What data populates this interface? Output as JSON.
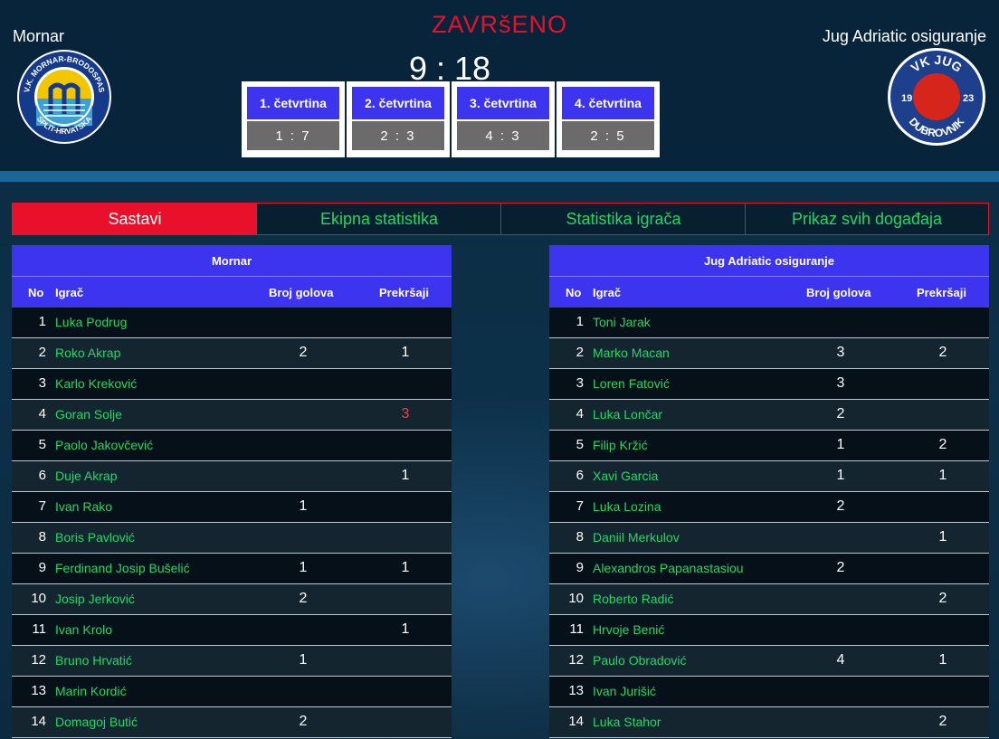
{
  "match": {
    "status": "ZAVRšENO",
    "score": "9 : 18",
    "home_team": "Mornar",
    "away_team": "Jug Adriatic osiguranje"
  },
  "logos": {
    "home": {
      "ring_text_top": "V.K. MORNAR-BRODOSPAS",
      "ring_text_bottom": "SPLIT-HRVATSKA"
    },
    "away": {
      "top": "VK JUG",
      "left": "19",
      "right": "23",
      "bottom": "DUBROVNIK"
    }
  },
  "quarters": [
    {
      "label": "1. četvrtina",
      "score": "1 : 7"
    },
    {
      "label": "2. četvrtina",
      "score": "2 : 3"
    },
    {
      "label": "3. četvrtina",
      "score": "4 : 3"
    },
    {
      "label": "4. četvrtina",
      "score": "2 : 5"
    }
  ],
  "tabs": [
    {
      "label": "Sastavi",
      "active": true
    },
    {
      "label": "Ekipna statistika",
      "active": false
    },
    {
      "label": "Statistika igrača",
      "active": false
    },
    {
      "label": "Prikaz svih događaja",
      "active": false
    }
  ],
  "columns": {
    "no": "No",
    "player": "Igrač",
    "goals": "Broj golova",
    "fouls": "Prekršaji"
  },
  "home_players": [
    {
      "no": "1",
      "name": "Luka Podrug",
      "goals": "",
      "fouls": ""
    },
    {
      "no": "2",
      "name": "Roko Akrap",
      "goals": "2",
      "fouls": "1"
    },
    {
      "no": "3",
      "name": "Karlo Kreković",
      "goals": "",
      "fouls": ""
    },
    {
      "no": "4",
      "name": "Goran Solje",
      "goals": "",
      "fouls": "3",
      "fouls_highlight": true
    },
    {
      "no": "5",
      "name": "Paolo Jakovčević",
      "goals": "",
      "fouls": ""
    },
    {
      "no": "6",
      "name": "Duje Akrap",
      "goals": "",
      "fouls": "1"
    },
    {
      "no": "7",
      "name": "Ivan Rako",
      "goals": "1",
      "fouls": ""
    },
    {
      "no": "8",
      "name": "Boris Pavlović",
      "goals": "",
      "fouls": ""
    },
    {
      "no": "9",
      "name": "Ferdinand Josip Bušelić",
      "goals": "1",
      "fouls": "1"
    },
    {
      "no": "10",
      "name": "Josip Jerković",
      "goals": "2",
      "fouls": ""
    },
    {
      "no": "11",
      "name": "Ivan Krolo",
      "goals": "",
      "fouls": "1"
    },
    {
      "no": "12",
      "name": "Bruno Hrvatić",
      "goals": "1",
      "fouls": ""
    },
    {
      "no": "13",
      "name": "Marin Kordić",
      "goals": "",
      "fouls": ""
    },
    {
      "no": "14",
      "name": "Domagoj Butić",
      "goals": "2",
      "fouls": ""
    }
  ],
  "away_players": [
    {
      "no": "1",
      "name": "Toni Jarak",
      "goals": "",
      "fouls": ""
    },
    {
      "no": "2",
      "name": "Marko Macan",
      "goals": "3",
      "fouls": "2"
    },
    {
      "no": "3",
      "name": "Loren Fatović",
      "goals": "3",
      "fouls": ""
    },
    {
      "no": "4",
      "name": "Luka Lončar",
      "goals": "2",
      "fouls": ""
    },
    {
      "no": "5",
      "name": "Filip Kržić",
      "goals": "1",
      "fouls": "2"
    },
    {
      "no": "6",
      "name": "Xavi Garcia",
      "goals": "1",
      "fouls": "1"
    },
    {
      "no": "7",
      "name": "Luka Lozina",
      "goals": "2",
      "fouls": ""
    },
    {
      "no": "8",
      "name": "Daniil Merkulov",
      "goals": "",
      "fouls": "1"
    },
    {
      "no": "9",
      "name": "Alexandros Papanastasiou",
      "goals": "2",
      "fouls": ""
    },
    {
      "no": "10",
      "name": "Roberto Radić",
      "goals": "",
      "fouls": "2"
    },
    {
      "no": "11",
      "name": "Hrvoje Benić",
      "goals": "",
      "fouls": ""
    },
    {
      "no": "12",
      "name": "Paulo Obradović",
      "goals": "4",
      "fouls": "1"
    },
    {
      "no": "13",
      "name": "Ivan Jurišić",
      "goals": "",
      "fouls": ""
    },
    {
      "no": "14",
      "name": "Luka Stahor",
      "goals": "",
      "fouls": "2"
    }
  ],
  "colors": {
    "accent_red": "#e8102b",
    "header_blue": "#3d34ef",
    "player_green": "#1fd86a"
  }
}
